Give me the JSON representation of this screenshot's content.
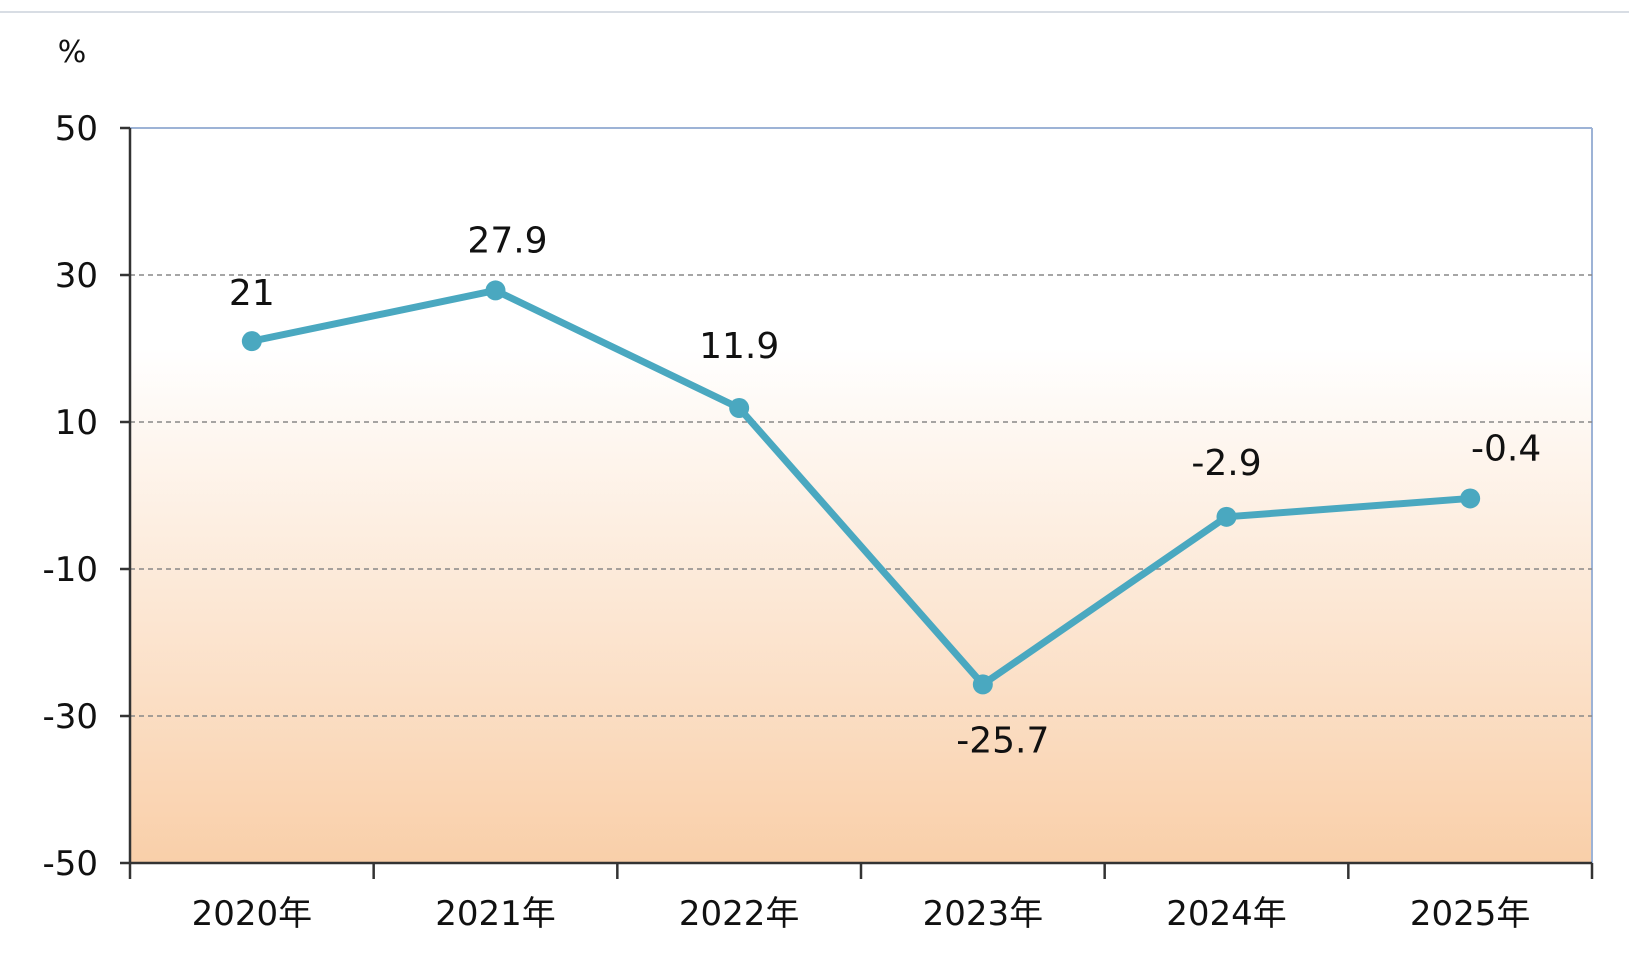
{
  "chart_data": {
    "type": "line",
    "title": "",
    "xlabel": "",
    "ylabel": "%",
    "categories": [
      "2020年",
      "2021年",
      "2022年",
      "2023年",
      "2024年",
      "2025年"
    ],
    "series": [
      {
        "values": [
          21,
          27.9,
          11.9,
          -25.7,
          -2.9,
          -0.4
        ],
        "data_labels": [
          "21",
          "27.9",
          "11.9",
          "-25.7",
          "-2.9",
          "-0.4"
        ]
      }
    ],
    "ylim": [
      -50,
      50
    ],
    "yticks": [
      50,
      30,
      10,
      -10,
      -30,
      -50
    ],
    "ytick_labels": [
      "50",
      "30",
      "10",
      "-10",
      "-30",
      "-50"
    ],
    "grid": "dashed horizontal at 30, 10, -10, -30",
    "legend": "none",
    "colors": {
      "line": "#4aa8c0",
      "marker": "#4aa8c0",
      "background_top": "#ffffff",
      "background_bottom": "#f9cfa9",
      "axis": "#333333",
      "grid": "#888888",
      "plot_border": "#9db3d6"
    }
  }
}
